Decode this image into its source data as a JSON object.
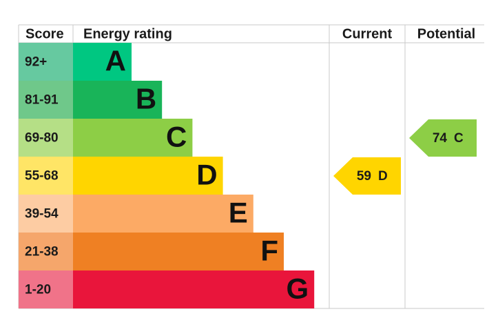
{
  "header": {
    "score": "Score",
    "rating": "Energy rating",
    "current": "Current",
    "potential": "Potential"
  },
  "bands": [
    {
      "score": "92+",
      "letter": "A",
      "color": "#00c781",
      "score_color": "#66c9a0"
    },
    {
      "score": "81-91",
      "letter": "B",
      "color": "#19b459",
      "score_color": "#6fc88a"
    },
    {
      "score": "69-80",
      "letter": "C",
      "color": "#8dce46",
      "score_color": "#b5df86"
    },
    {
      "score": "55-68",
      "letter": "D",
      "color": "#ffd500",
      "score_color": "#ffe566"
    },
    {
      "score": "39-54",
      "letter": "E",
      "color": "#fcaa65",
      "score_color": "#fdcca3"
    },
    {
      "score": "21-38",
      "letter": "F",
      "color": "#ef8023",
      "score_color": "#f5a66b"
    },
    {
      "score": "1-20",
      "letter": "G",
      "color": "#e9153b",
      "score_color": "#f07389"
    }
  ],
  "current": {
    "value": 59,
    "letter": "D"
  },
  "potential": {
    "value": 74,
    "letter": "C"
  }
}
